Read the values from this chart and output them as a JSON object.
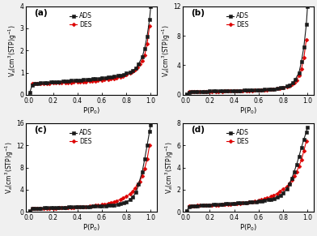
{
  "panels": [
    {
      "label": "(a)",
      "ylim": [
        0,
        4
      ],
      "yticks": [
        0,
        1,
        2,
        3,
        4
      ],
      "ads_x": [
        0.01,
        0.03,
        0.05,
        0.08,
        0.1,
        0.13,
        0.15,
        0.18,
        0.2,
        0.23,
        0.25,
        0.28,
        0.3,
        0.33,
        0.35,
        0.38,
        0.4,
        0.43,
        0.45,
        0.48,
        0.5,
        0.53,
        0.55,
        0.58,
        0.6,
        0.63,
        0.65,
        0.68,
        0.7,
        0.73,
        0.75,
        0.78,
        0.8,
        0.83,
        0.85,
        0.88,
        0.9,
        0.93,
        0.95,
        0.97,
        0.99,
        1.0
      ],
      "ads_y": [
        0.12,
        0.45,
        0.5,
        0.52,
        0.54,
        0.55,
        0.56,
        0.57,
        0.58,
        0.59,
        0.6,
        0.61,
        0.62,
        0.63,
        0.64,
        0.65,
        0.66,
        0.67,
        0.68,
        0.69,
        0.7,
        0.72,
        0.73,
        0.74,
        0.76,
        0.77,
        0.79,
        0.81,
        0.83,
        0.86,
        0.89,
        0.92,
        0.97,
        1.02,
        1.08,
        1.2,
        1.4,
        1.7,
        2.1,
        2.65,
        3.4,
        4.0
      ],
      "des_x": [
        0.99,
        0.97,
        0.95,
        0.93,
        0.91,
        0.89,
        0.87,
        0.85,
        0.83,
        0.8,
        0.77,
        0.75,
        0.72,
        0.7,
        0.67,
        0.65,
        0.62,
        0.6,
        0.57,
        0.55,
        0.52,
        0.5,
        0.47,
        0.45,
        0.42,
        0.4,
        0.37,
        0.35,
        0.32,
        0.3,
        0.27,
        0.25,
        0.22,
        0.2,
        0.17,
        0.15,
        0.12,
        0.1,
        0.07,
        0.05,
        0.03
      ],
      "des_y": [
        3.1,
        2.3,
        1.8,
        1.55,
        1.38,
        1.25,
        1.15,
        1.05,
        0.97,
        0.9,
        0.85,
        0.81,
        0.77,
        0.74,
        0.72,
        0.7,
        0.68,
        0.66,
        0.65,
        0.63,
        0.62,
        0.61,
        0.6,
        0.59,
        0.58,
        0.58,
        0.57,
        0.56,
        0.56,
        0.55,
        0.54,
        0.54,
        0.53,
        0.53,
        0.52,
        0.52,
        0.51,
        0.51,
        0.51,
        0.5,
        0.5
      ]
    },
    {
      "label": "(b)",
      "ylim": [
        0,
        12
      ],
      "yticks": [
        0,
        4,
        8,
        12
      ],
      "ads_x": [
        0.01,
        0.03,
        0.05,
        0.08,
        0.1,
        0.13,
        0.15,
        0.18,
        0.2,
        0.23,
        0.25,
        0.28,
        0.3,
        0.33,
        0.35,
        0.38,
        0.4,
        0.43,
        0.45,
        0.48,
        0.5,
        0.53,
        0.55,
        0.58,
        0.6,
        0.63,
        0.65,
        0.68,
        0.7,
        0.73,
        0.75,
        0.78,
        0.8,
        0.83,
        0.85,
        0.88,
        0.9,
        0.93,
        0.95,
        0.97,
        0.99,
        1.0
      ],
      "ads_y": [
        0.08,
        0.35,
        0.4,
        0.43,
        0.45,
        0.46,
        0.47,
        0.48,
        0.49,
        0.5,
        0.51,
        0.52,
        0.53,
        0.54,
        0.55,
        0.56,
        0.57,
        0.58,
        0.59,
        0.6,
        0.61,
        0.62,
        0.63,
        0.65,
        0.67,
        0.69,
        0.71,
        0.74,
        0.77,
        0.81,
        0.86,
        0.93,
        1.02,
        1.15,
        1.35,
        1.65,
        2.1,
        3.0,
        4.5,
        6.5,
        9.5,
        12.0
      ],
      "des_x": [
        0.99,
        0.97,
        0.95,
        0.93,
        0.91,
        0.89,
        0.87,
        0.85,
        0.83,
        0.8,
        0.77,
        0.75,
        0.72,
        0.7,
        0.67,
        0.65,
        0.62,
        0.6,
        0.57,
        0.55,
        0.52,
        0.5,
        0.47,
        0.45,
        0.42,
        0.4,
        0.37,
        0.35,
        0.32,
        0.3,
        0.27,
        0.25,
        0.22,
        0.2,
        0.17,
        0.15,
        0.12,
        0.1,
        0.07,
        0.05,
        0.03
      ],
      "des_y": [
        7.5,
        5.0,
        3.5,
        2.6,
        2.0,
        1.65,
        1.4,
        1.22,
        1.08,
        0.97,
        0.89,
        0.83,
        0.77,
        0.73,
        0.7,
        0.67,
        0.64,
        0.62,
        0.6,
        0.58,
        0.57,
        0.55,
        0.54,
        0.53,
        0.52,
        0.51,
        0.5,
        0.5,
        0.49,
        0.48,
        0.48,
        0.47,
        0.47,
        0.46,
        0.46,
        0.45,
        0.45,
        0.44,
        0.44,
        0.44,
        0.43
      ]
    },
    {
      "label": "(c)",
      "ylim": [
        0,
        16
      ],
      "yticks": [
        0,
        4,
        8,
        12,
        16
      ],
      "ads_x": [
        0.01,
        0.03,
        0.05,
        0.08,
        0.1,
        0.13,
        0.15,
        0.18,
        0.2,
        0.23,
        0.25,
        0.28,
        0.3,
        0.33,
        0.35,
        0.38,
        0.4,
        0.43,
        0.45,
        0.48,
        0.5,
        0.53,
        0.55,
        0.58,
        0.6,
        0.63,
        0.65,
        0.68,
        0.7,
        0.73,
        0.75,
        0.78,
        0.8,
        0.83,
        0.85,
        0.88,
        0.9,
        0.93,
        0.95,
        0.97,
        0.99,
        1.0
      ],
      "ads_y": [
        0.15,
        0.55,
        0.62,
        0.66,
        0.68,
        0.7,
        0.72,
        0.73,
        0.74,
        0.76,
        0.77,
        0.79,
        0.81,
        0.83,
        0.84,
        0.86,
        0.88,
        0.9,
        0.92,
        0.94,
        0.96,
        0.98,
        1.0,
        1.03,
        1.06,
        1.1,
        1.14,
        1.19,
        1.26,
        1.34,
        1.45,
        1.6,
        1.82,
        2.15,
        2.65,
        3.5,
        5.0,
        7.2,
        9.5,
        12.0,
        14.5,
        15.7
      ],
      "des_x": [
        0.99,
        0.97,
        0.95,
        0.93,
        0.91,
        0.89,
        0.87,
        0.85,
        0.83,
        0.8,
        0.77,
        0.75,
        0.72,
        0.7,
        0.67,
        0.65,
        0.62,
        0.6,
        0.57,
        0.55,
        0.52,
        0.5,
        0.47,
        0.45,
        0.42,
        0.4,
        0.37,
        0.35,
        0.32,
        0.3,
        0.27,
        0.25,
        0.22,
        0.2,
        0.17,
        0.15,
        0.12,
        0.1,
        0.07,
        0.05,
        0.03
      ],
      "des_y": [
        12.0,
        9.5,
        7.8,
        6.5,
        5.5,
        4.8,
        4.2,
        3.7,
        3.2,
        2.8,
        2.45,
        2.2,
        2.0,
        1.82,
        1.66,
        1.52,
        1.4,
        1.3,
        1.21,
        1.13,
        1.06,
        1.0,
        0.95,
        0.91,
        0.87,
        0.83,
        0.8,
        0.77,
        0.75,
        0.73,
        0.71,
        0.69,
        0.68,
        0.67,
        0.66,
        0.65,
        0.64,
        0.63,
        0.62,
        0.62,
        0.61
      ]
    },
    {
      "label": "(d)",
      "ylim": [
        0,
        8
      ],
      "yticks": [
        0,
        2,
        4,
        6,
        8
      ],
      "ads_x": [
        0.01,
        0.03,
        0.05,
        0.08,
        0.1,
        0.13,
        0.15,
        0.18,
        0.2,
        0.23,
        0.25,
        0.28,
        0.3,
        0.33,
        0.35,
        0.38,
        0.4,
        0.43,
        0.45,
        0.48,
        0.5,
        0.53,
        0.55,
        0.58,
        0.6,
        0.63,
        0.65,
        0.68,
        0.7,
        0.73,
        0.75,
        0.78,
        0.8,
        0.83,
        0.85,
        0.87,
        0.89,
        0.91,
        0.93,
        0.95,
        0.97,
        0.99,
        1.0
      ],
      "ads_y": [
        0.1,
        0.42,
        0.5,
        0.54,
        0.56,
        0.58,
        0.6,
        0.62,
        0.63,
        0.65,
        0.66,
        0.68,
        0.7,
        0.72,
        0.73,
        0.75,
        0.77,
        0.79,
        0.81,
        0.83,
        0.85,
        0.87,
        0.89,
        0.92,
        0.95,
        0.99,
        1.03,
        1.08,
        1.14,
        1.22,
        1.33,
        1.48,
        1.7,
        2.05,
        2.5,
        3.0,
        3.6,
        4.25,
        5.0,
        5.8,
        6.55,
        7.2,
        7.6
      ],
      "des_x": [
        0.99,
        0.97,
        0.95,
        0.93,
        0.91,
        0.89,
        0.87,
        0.85,
        0.83,
        0.8,
        0.77,
        0.75,
        0.72,
        0.7,
        0.67,
        0.65,
        0.62,
        0.6,
        0.57,
        0.55,
        0.52,
        0.5,
        0.47,
        0.45,
        0.42,
        0.4,
        0.37,
        0.35,
        0.32,
        0.3,
        0.27,
        0.25,
        0.22,
        0.2,
        0.17,
        0.15,
        0.12,
        0.1,
        0.07,
        0.05,
        0.03
      ],
      "des_y": [
        6.4,
        5.5,
        4.7,
        4.1,
        3.6,
        3.2,
        2.85,
        2.55,
        2.28,
        2.03,
        1.82,
        1.65,
        1.5,
        1.37,
        1.26,
        1.17,
        1.09,
        1.02,
        0.96,
        0.91,
        0.87,
        0.83,
        0.79,
        0.76,
        0.73,
        0.71,
        0.69,
        0.67,
        0.65,
        0.64,
        0.62,
        0.61,
        0.6,
        0.59,
        0.58,
        0.58,
        0.57,
        0.57,
        0.56,
        0.56,
        0.56
      ]
    }
  ],
  "ads_color": "#1a1a1a",
  "des_color": "#dd0000",
  "ads_marker": "s",
  "des_marker": "D",
  "ads_marker_size": 2.5,
  "des_marker_size": 2.5,
  "line_width": 0.8,
  "xlabel": "P(P$_0$)",
  "ylabel": "V$_a$(cm$^3$(STP)g$^{-1}$)",
  "legend_ads": "ADS",
  "legend_des": "DES",
  "bg_color": "#f0f0f0",
  "xticks": [
    0.0,
    0.2,
    0.4,
    0.6,
    0.8,
    1.0
  ]
}
